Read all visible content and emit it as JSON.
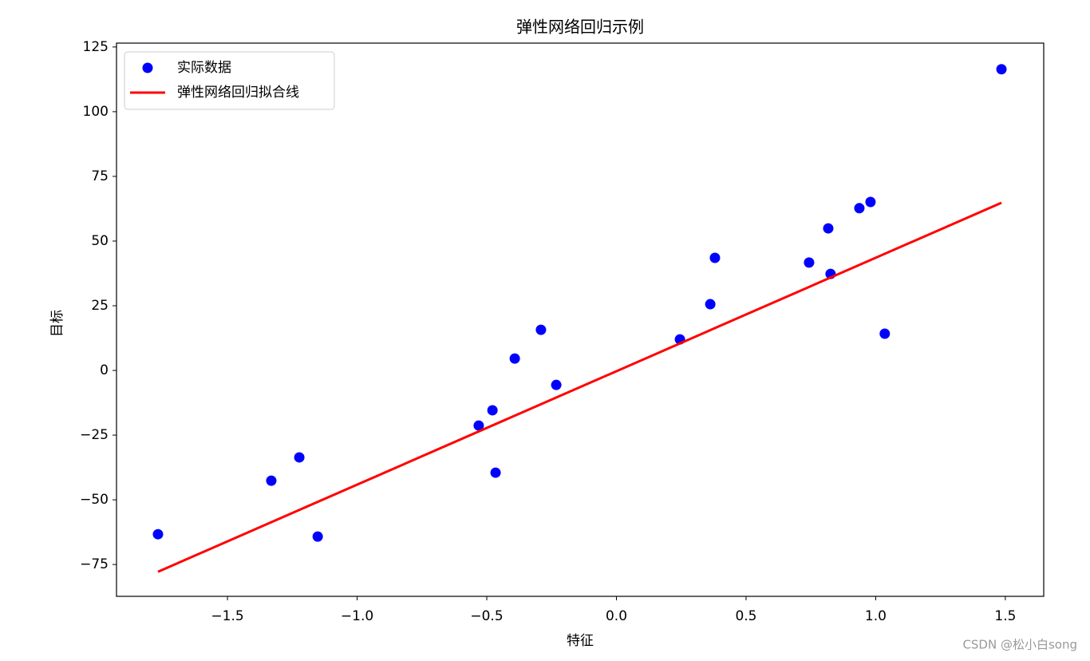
{
  "chart_data": {
    "type": "scatter",
    "title": "弹性网络回归示例",
    "x_label": "特征",
    "y_label": "目标",
    "series": [
      {
        "name": "实际数据",
        "type": "scatter",
        "color": "#0000ff",
        "x": [
          -1.768,
          -1.331,
          -1.223,
          -1.152,
          -0.531,
          -0.478,
          -0.466,
          -0.392,
          -0.291,
          -0.232,
          0.245,
          0.362,
          0.38,
          0.743,
          0.817,
          0.826,
          0.937,
          0.98,
          1.035,
          1.485
        ],
        "values": [
          -63.3,
          -42.6,
          -33.6,
          -64.2,
          -21.3,
          -15.4,
          -39.5,
          4.6,
          15.7,
          -5.6,
          12.0,
          25.6,
          43.5,
          41.7,
          54.9,
          37.3,
          62.7,
          65.1,
          14.2,
          116.4
        ]
      },
      {
        "name": "弹性网络回归拟合线",
        "type": "line",
        "color": "#ff0000",
        "x": [
          -1.768,
          1.485
        ],
        "values": [
          -77.8,
          64.8
        ]
      }
    ],
    "xlim": [
      -1.928,
      1.648
    ],
    "xticks": [
      {
        "value": -1.5,
        "label": "−1.5"
      },
      {
        "value": -1.0,
        "label": "−1.0"
      },
      {
        "value": -0.5,
        "label": "−0.5"
      },
      {
        "value": 0,
        "label": "0.0"
      },
      0.5,
      {
        "value": 1.0,
        "label": "1.0"
      },
      1.5
    ],
    "ylim": [
      -87.3,
      126.5
    ],
    "yticks": [
      {
        "value": -75,
        "label": "−75"
      },
      {
        "value": -50,
        "label": "−50"
      },
      {
        "value": -25,
        "label": "−25"
      },
      0,
      25,
      50,
      75,
      100,
      125
    ],
    "legend": "upper left",
    "watermark": "CSDN @松小白song"
  }
}
